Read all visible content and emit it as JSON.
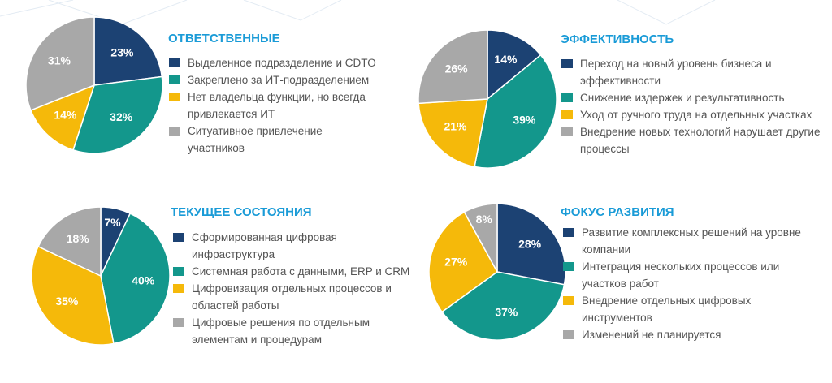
{
  "chart_data": [
    {
      "type": "pie",
      "title": "ОТВЕТСТВЕННЫЕ",
      "categories": [
        "Выделенное подразделение и CDTO",
        "Закреплено за ИТ-подразделением",
        "Нет владельца функции, но всегда привлекается ИТ",
        "Ситуативное привлечение участников"
      ],
      "values": [
        23,
        32,
        14,
        31
      ],
      "value_labels": [
        "23%",
        "32%",
        "14%",
        "31%"
      ],
      "colors": [
        "#1c4273",
        "#13978c",
        "#f5b90a",
        "#a8a8a8"
      ]
    },
    {
      "type": "pie",
      "title": "ЭФФЕКТИВНОСТЬ",
      "categories": [
        "Переход на новый уровень бизнеса и эффективности",
        "Снижение издержек и результативность",
        "Уход от ручного труда на отдельных участках",
        "Внедрение новых технологий нарушает другие процессы"
      ],
      "values": [
        14,
        39,
        21,
        26
      ],
      "value_labels": [
        "14%",
        "39%",
        "21%",
        "26%"
      ],
      "colors": [
        "#1c4273",
        "#13978c",
        "#f5b90a",
        "#a8a8a8"
      ]
    },
    {
      "type": "pie",
      "title": "ТЕКУЩЕЕ СОСТОЯНИЯ",
      "categories": [
        "Сформированная цифровая инфраструктура",
        "Системная работа с данными, ERP и CRM",
        "Цифровизация отдельных процессов и областей работы",
        "Цифровые решения по отдельным элементам и процедурам"
      ],
      "values": [
        7,
        40,
        35,
        18
      ],
      "value_labels": [
        "7%",
        "40%",
        "35%",
        "18%"
      ],
      "colors": [
        "#1c4273",
        "#13978c",
        "#f5b90a",
        "#a8a8a8"
      ]
    },
    {
      "type": "pie",
      "title": "ФОКУС РАЗВИТИЯ",
      "categories": [
        "Развитие комплексных решений на уровне компании",
        "Интеграция нескольких процессов или участков работ",
        "Внедрение отдельных цифровых инструментов",
        "Изменений не планируется"
      ],
      "values": [
        28,
        37,
        27,
        8
      ],
      "value_labels": [
        "28%",
        "37%",
        "27%",
        "8%"
      ],
      "colors": [
        "#1c4273",
        "#13978c",
        "#f5b90a",
        "#a8a8a8"
      ]
    }
  ]
}
